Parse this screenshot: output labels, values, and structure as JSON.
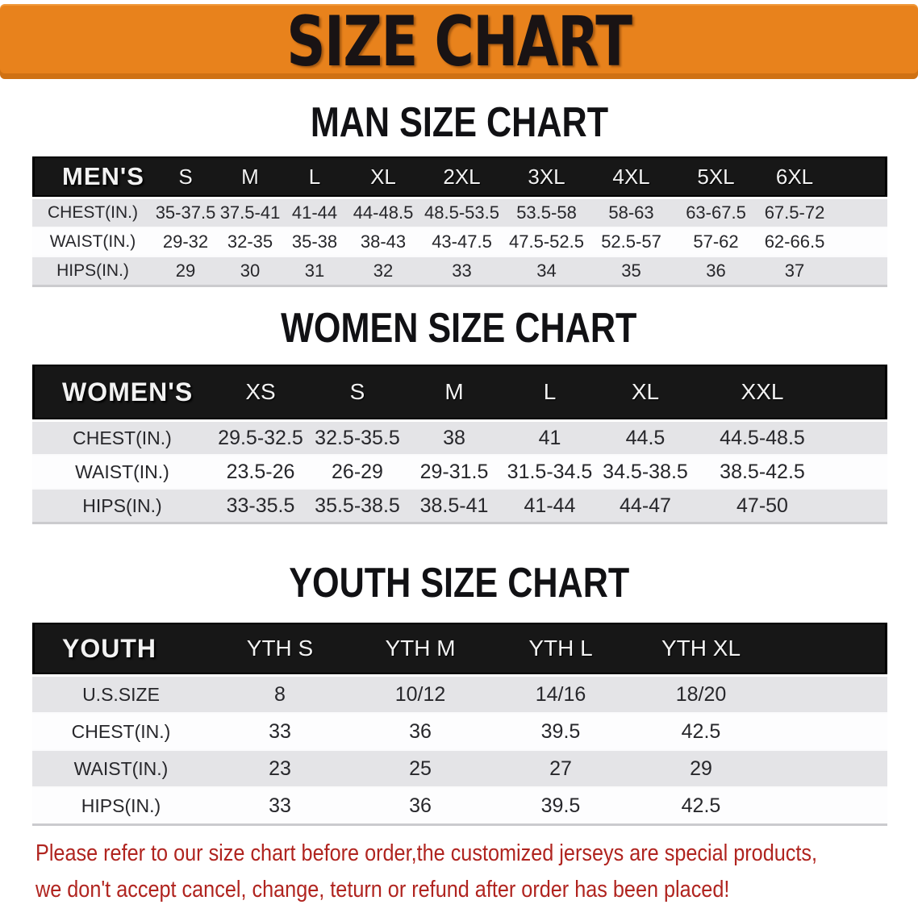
{
  "banner": {
    "title": "SIZE CHART",
    "bg_color": "#e8821c",
    "title_color": "#191314"
  },
  "sections": [
    {
      "heading": "MAN SIZE CHART",
      "corner_label": "MEN'S",
      "columns": [
        "S",
        "M",
        "L",
        "XL",
        "2XL",
        "3XL",
        "4XL",
        "5XL",
        "6XL"
      ],
      "rows": [
        {
          "label": "CHEST(IN.)",
          "values": [
            "35-37.5",
            "37.5-41",
            "41-44",
            "44-48.5",
            "48.5-53.5",
            "53.5-58",
            "58-63",
            "63-67.5",
            "67.5-72"
          ]
        },
        {
          "label": "WAIST(IN.)",
          "values": [
            "29-32",
            "32-35",
            "35-38",
            "38-43",
            "43-47.5",
            "47.5-52.5",
            "52.5-57",
            "57-62",
            "62-66.5"
          ]
        },
        {
          "label": "HIPS(IN.)",
          "values": [
            "29",
            "30",
            "31",
            "32",
            "33",
            "34",
            "35",
            "36",
            "37"
          ]
        }
      ]
    },
    {
      "heading": "WOMEN SIZE CHART",
      "corner_label": "WOMEN'S",
      "columns": [
        "XS",
        "S",
        "M",
        "L",
        "XL",
        "XXL"
      ],
      "rows": [
        {
          "label": "CHEST(IN.)",
          "values": [
            "29.5-32.5",
            "32.5-35.5",
            "38",
            "41",
            "44.5",
            "44.5-48.5"
          ]
        },
        {
          "label": "WAIST(IN.)",
          "values": [
            "23.5-26",
            "26-29",
            "29-31.5",
            "31.5-34.5",
            "34.5-38.5",
            "38.5-42.5"
          ]
        },
        {
          "label": "HIPS(IN.)",
          "values": [
            "33-35.5",
            "35.5-38.5",
            "38.5-41",
            "41-44",
            "44-47",
            "47-50"
          ]
        }
      ]
    },
    {
      "heading": "YOUTH SIZE CHART",
      "corner_label": "YOUTH",
      "columns": [
        "YTH S",
        "YTH M",
        "YTH L",
        "YTH XL"
      ],
      "rows": [
        {
          "label": "U.S.SIZE",
          "values": [
            "8",
            "10/12",
            "14/16",
            "18/20"
          ]
        },
        {
          "label": "CHEST(IN.)",
          "values": [
            "33",
            "36",
            "39.5",
            "42.5"
          ]
        },
        {
          "label": "WAIST(IN.)",
          "values": [
            "23",
            "25",
            "27",
            "29"
          ]
        },
        {
          "label": "HIPS(IN.)",
          "values": [
            "33",
            "36",
            "39.5",
            "42.5"
          ]
        }
      ]
    }
  ],
  "table_colors": {
    "header_bg": "#171717",
    "header_text": "#f2f2f2",
    "row_gray": "#e4e4e7",
    "row_white": "#fdfdfe"
  },
  "disclaimer": {
    "line1": "Please refer to our size chart before order,the customized jerseys are special products,",
    "line2": "we don't accept cancel, change, teturn or refund after order has been placed!",
    "color": "#b0241f"
  }
}
